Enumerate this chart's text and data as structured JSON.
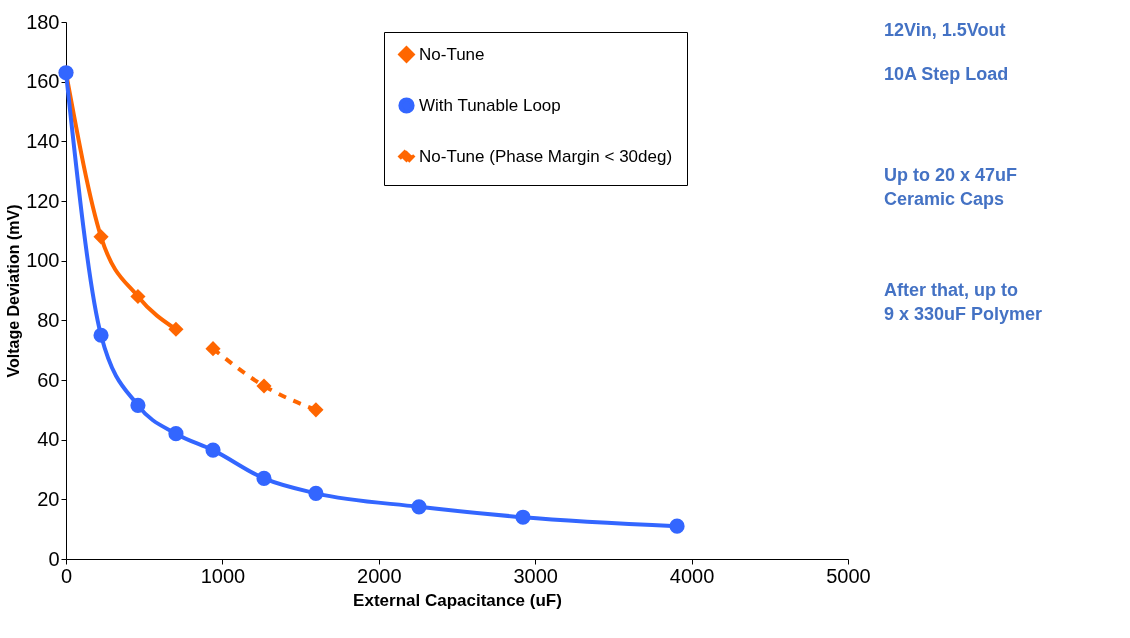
{
  "chart_data": {
    "type": "line",
    "xlabel": "External Capacitance (uF)",
    "ylabel": "Voltage Deviation (mV)",
    "xlim": [
      0,
      5000
    ],
    "xticks": [
      0,
      1000,
      2000,
      3000,
      4000,
      5000
    ],
    "ylim": [
      0,
      180
    ],
    "yticks": [
      0,
      20,
      40,
      60,
      80,
      100,
      120,
      140,
      160,
      180
    ],
    "grid": false,
    "legend": "top right",
    "series": [
      {
        "name": "No-Tune",
        "color": "#ff6600",
        "marker": "diamond",
        "line_style": "solid",
        "x": [
          0,
          224,
          460,
          703
        ],
        "values": [
          163,
          108,
          88,
          77
        ]
      },
      {
        "name": "With Tunable Loop",
        "color": "#3366ff",
        "marker": "circle",
        "line_style": "solid",
        "x": [
          0,
          224,
          460,
          703,
          940,
          1266,
          1598,
          2257,
          2922,
          3907
        ],
        "values": [
          163,
          75,
          51.5,
          42,
          36.5,
          27,
          22,
          17.5,
          14,
          11
        ]
      },
      {
        "name": "No-Tune (Phase Margin < 30deg)",
        "color": "#ff6600",
        "marker": "diamond",
        "line_style": "dashed",
        "x": [
          940,
          1266,
          1598
        ],
        "values": [
          70.5,
          58,
          50
        ]
      }
    ],
    "annotations": [
      "12Vin, 1.5Vout",
      "10A Step Load",
      "Up to 20 x 47uF\nCeramic Caps",
      "After that, up to\n9 x 330uF Polymer"
    ]
  }
}
